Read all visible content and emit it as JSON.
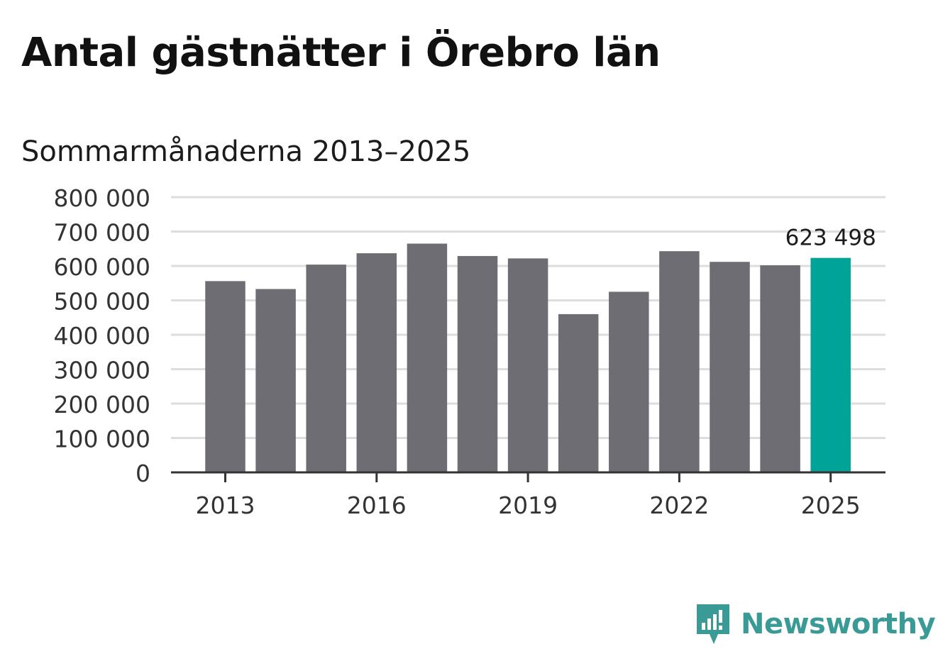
{
  "title": "Antal gästnätter i Örebro län",
  "subtitle": "Sommarmånaderna 2013–2025",
  "brand": {
    "name": "Newsworthy",
    "color": "#3a9a95",
    "icon": "newsworthy-logo-icon"
  },
  "colors": {
    "bar": "#6e6d73",
    "highlight": "#00a397",
    "grid": "#dddddd",
    "axis": "#333333",
    "text": "#333333"
  },
  "chart_data": {
    "type": "bar",
    "categories": [
      "2013",
      "2014",
      "2015",
      "2016",
      "2017",
      "2018",
      "2019",
      "2020",
      "2021",
      "2022",
      "2023",
      "2024",
      "2025"
    ],
    "values": [
      556000,
      533000,
      604000,
      637000,
      665000,
      629000,
      622000,
      460000,
      525000,
      643000,
      612000,
      602000,
      623498
    ],
    "xticks": [
      "2013",
      "2016",
      "2019",
      "2022",
      "2025"
    ],
    "ylim": [
      0,
      800000
    ],
    "yticks": [
      0,
      100000,
      200000,
      300000,
      400000,
      500000,
      600000,
      700000,
      800000
    ],
    "ytick_labels": [
      "0",
      "100 000",
      "200 000",
      "300 000",
      "400 000",
      "500 000",
      "600 000",
      "700 000",
      "800 000"
    ],
    "highlight_index": 12,
    "data_labels": [
      {
        "index": 12,
        "text": "623 498"
      }
    ],
    "grid": true,
    "xlabel": "",
    "ylabel": ""
  }
}
